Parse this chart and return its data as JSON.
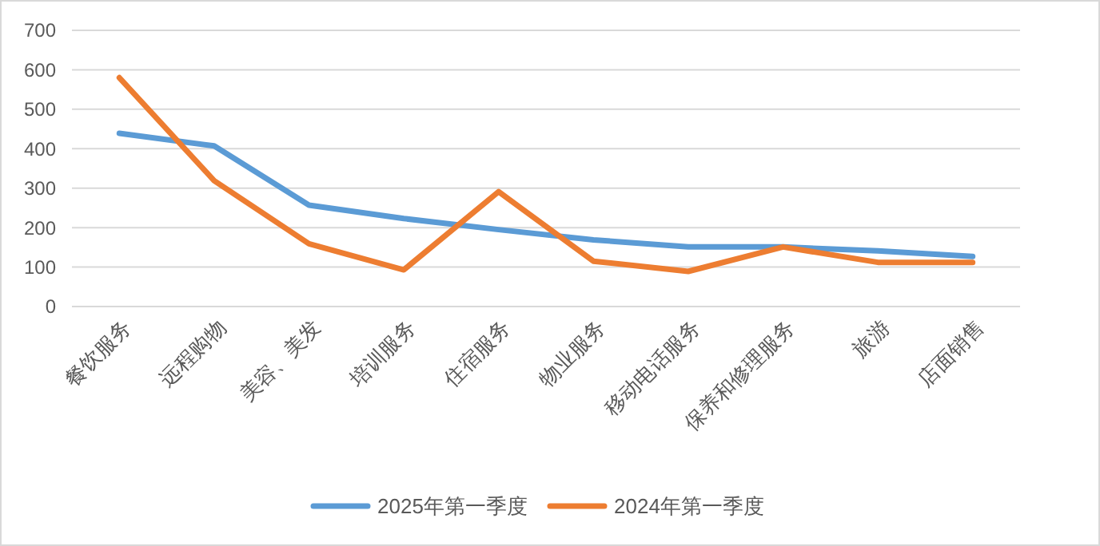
{
  "chart_data": {
    "type": "line",
    "categories": [
      "餐饮服务",
      "远程购物",
      "美容、美发",
      "培训服务",
      "住宿服务",
      "物业服务",
      "移动电话服务",
      "保养和修理服务",
      "旅游",
      "店面销售"
    ],
    "series": [
      {
        "name": "2025年第一季度",
        "color": "#5b9bd5",
        "values": [
          439,
          407,
          257,
          223,
          195,
          169,
          151,
          151,
          141,
          127
        ]
      },
      {
        "name": "2024年第一季度",
        "color": "#ed7d31",
        "values": [
          580,
          319,
          159,
          93,
          291,
          115,
          89,
          151,
          112,
          112
        ]
      }
    ],
    "ylim": [
      0,
      700
    ],
    "yticks": [
      0,
      100,
      200,
      300,
      400,
      500,
      600,
      700
    ],
    "grid": "y",
    "legend": "bottom"
  }
}
